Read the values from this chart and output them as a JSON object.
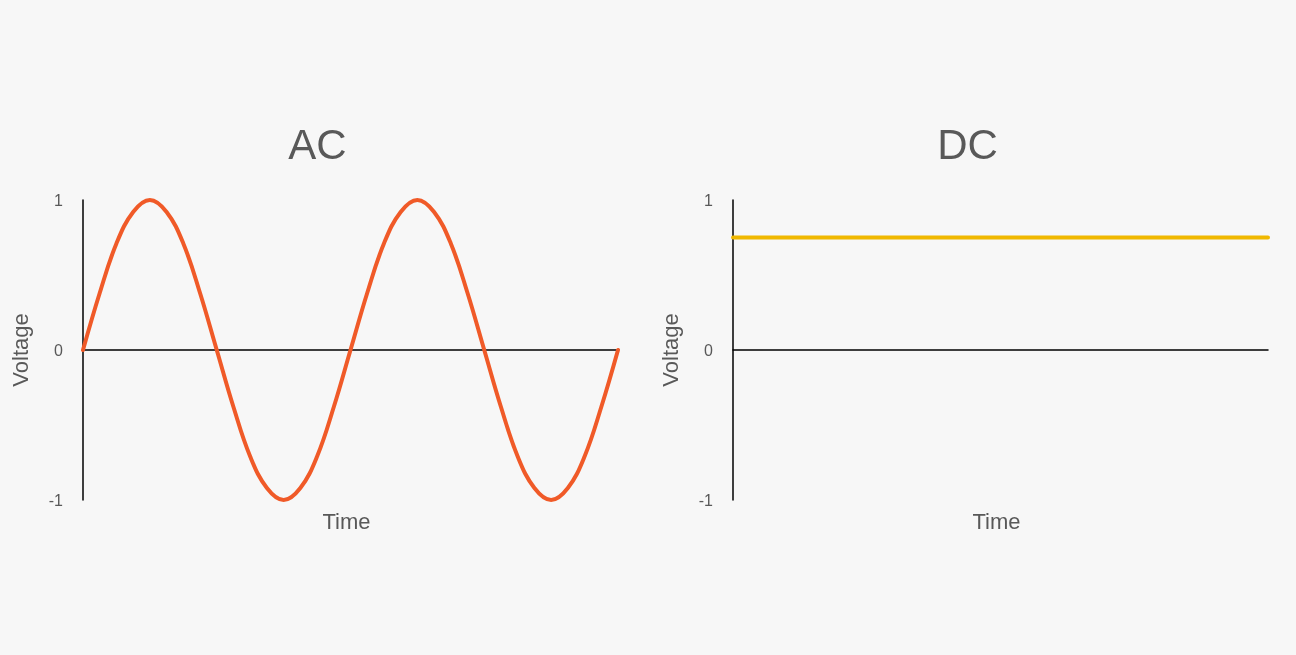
{
  "chart_data": [
    {
      "type": "line",
      "title": "AC",
      "xlabel": "Time",
      "ylabel": "Voltage",
      "categories": [
        null,
        null,
        null,
        null,
        null,
        null,
        null,
        null,
        null,
        null,
        null,
        null,
        null,
        null,
        null,
        null,
        null,
        null,
        null,
        null,
        null,
        null,
        null,
        null,
        null,
        null,
        null,
        null,
        null,
        null,
        null,
        null,
        null
      ],
      "series": [
        {
          "color": "#f05a28",
          "values": [
            0,
            0.38,
            0.71,
            0.92,
            1,
            0.92,
            0.71,
            0.38,
            0,
            -0.38,
            -0.71,
            -0.92,
            -1,
            -0.92,
            -0.71,
            -0.38,
            0,
            0.38,
            0.71,
            0.92,
            1,
            0.92,
            0.71,
            0.38,
            0,
            -0.38,
            -0.71,
            -0.92,
            -1,
            -0.92,
            -0.71,
            -0.38,
            0
          ]
        }
      ],
      "ylim": [
        -1,
        1
      ],
      "yticks": [
        -1,
        0,
        1
      ],
      "tick_labels": "y",
      "marker": "none",
      "line_style": "solid"
    },
    {
      "type": "line",
      "title": "DC",
      "xlabel": "Time",
      "ylabel": "Voltage",
      "categories": [
        null,
        null,
        null,
        null,
        null,
        null,
        null,
        null,
        null
      ],
      "series": [
        {
          "color": "#f0b800",
          "values": [
            0.75,
            0.75,
            0.75,
            0.75,
            0.75,
            0.75,
            0.75,
            0.75,
            0.75
          ]
        }
      ],
      "ylim": [
        -1,
        1
      ],
      "yticks": [
        -1,
        0,
        1
      ],
      "tick_labels": "y",
      "marker": "none",
      "line_style": "solid"
    }
  ]
}
